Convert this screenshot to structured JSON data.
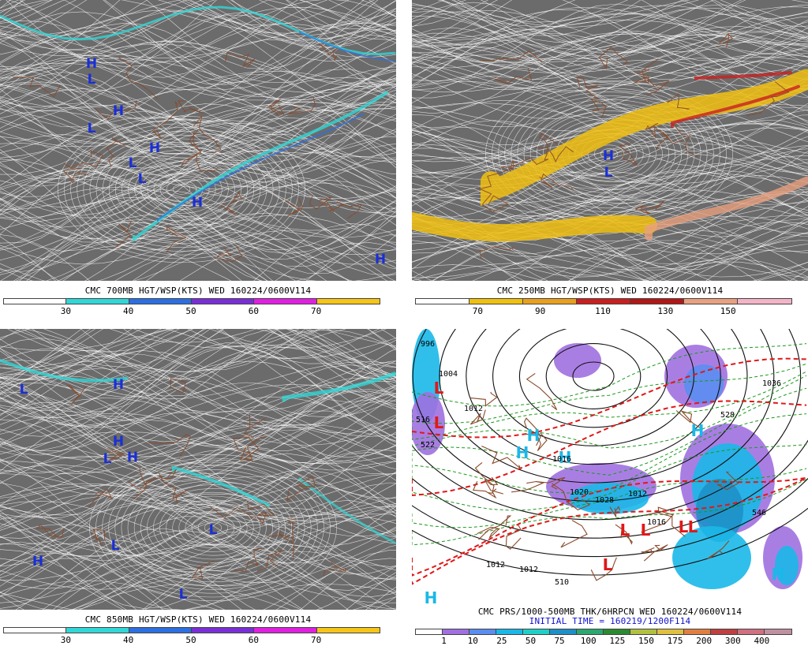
{
  "colors": {
    "map_fill": "#6b6b6b",
    "streamline": "#ffffff",
    "border": "#8a4a2a",
    "hi_lo_blue": "#1a2fd6",
    "hi_lo_red": "#e01818",
    "hi_lo_cyan": "#1ab8e8",
    "thickness_red": "#e01818",
    "thickness_green": "#1a9a1a",
    "isobar": "#111111"
  },
  "panels": [
    {
      "id": "p700",
      "caption": "CMC 700MB HGT/WSP(KTS) WED 160224/0600V114",
      "colorbar": {
        "segments": [
          "#ffffff",
          "#33d6d6",
          "#2d6fe0",
          "#7a2fd6",
          "#e020e0",
          "#f5c518"
        ],
        "ticks": [
          "30",
          "40",
          "50",
          "60",
          "70"
        ]
      },
      "markers": [
        {
          "t": "H",
          "c": "blue"
        },
        {
          "t": "L",
          "c": "blue"
        },
        {
          "t": "H",
          "c": "blue"
        },
        {
          "t": "L",
          "c": "blue"
        },
        {
          "t": "H",
          "c": "blue"
        },
        {
          "t": "L",
          "c": "blue"
        },
        {
          "t": "L",
          "c": "blue"
        },
        {
          "t": "H",
          "c": "blue"
        },
        {
          "t": "H",
          "c": "blue"
        }
      ]
    },
    {
      "id": "p250",
      "caption": "CMC 250MB HGT/WSP(KTS) WED 160224/0600V114",
      "colorbar": {
        "segments": [
          "#ffffff",
          "#f0c010",
          "#e8a020",
          "#c82020",
          "#b01818",
          "#e8a080",
          "#f4b4c8"
        ],
        "ticks": [
          "70",
          "90",
          "110",
          "130",
          "150"
        ]
      },
      "markers": [
        {
          "t": "H",
          "c": "blue"
        },
        {
          "t": "L",
          "c": "blue"
        }
      ]
    },
    {
      "id": "p850",
      "caption": "CMC 850MB HGT/WSP(KTS) WED 160224/0600V114",
      "colorbar": {
        "segments": [
          "#ffffff",
          "#33d6d6",
          "#2d6fe0",
          "#7a2fd6",
          "#e020e0",
          "#f5c518"
        ],
        "ticks": [
          "30",
          "40",
          "50",
          "60",
          "70"
        ]
      },
      "markers": [
        {
          "t": "L",
          "c": "blue"
        },
        {
          "t": "H",
          "c": "blue"
        },
        {
          "t": "H",
          "c": "blue"
        },
        {
          "t": "H",
          "c": "blue"
        },
        {
          "t": "L",
          "c": "blue"
        },
        {
          "t": "L",
          "c": "blue"
        },
        {
          "t": "L",
          "c": "blue"
        },
        {
          "t": "H",
          "c": "blue"
        },
        {
          "t": "L",
          "c": "blue"
        }
      ]
    },
    {
      "id": "pprs",
      "caption": "CMC PRS/1000-500MB THK/6HRPCN WED 160224/0600V114",
      "subcaption": "INITIAL TIME = 160219/1200F114",
      "colorbar": {
        "segments": [
          "#ffffff",
          "#a070e0",
          "#5a8ef0",
          "#1ab8e8",
          "#20d0c8",
          "#1e90c8",
          "#2aa870",
          "#2a8a30",
          "#b0c040",
          "#e0c040",
          "#e08040",
          "#c04040",
          "#d07080",
          "#c090a0"
        ],
        "ticks": [
          "1",
          "10",
          "25",
          "50",
          "75",
          "100",
          "125",
          "150",
          "175",
          "200",
          "300",
          "400"
        ]
      },
      "markers": [
        {
          "t": "L",
          "c": "red"
        },
        {
          "t": "L",
          "c": "red"
        },
        {
          "t": "H",
          "c": "cyan"
        },
        {
          "t": "H",
          "c": "cyan"
        },
        {
          "t": "H",
          "c": "cyan"
        },
        {
          "t": "H",
          "c": "cyan"
        },
        {
          "t": "L",
          "c": "red"
        },
        {
          "t": "L",
          "c": "red"
        },
        {
          "t": "L",
          "c": "red"
        },
        {
          "t": "L",
          "c": "red"
        },
        {
          "t": "L",
          "c": "red"
        },
        {
          "t": "H",
          "c": "cyan"
        },
        {
          "t": "H",
          "c": "cyan"
        }
      ],
      "isobar_labels": [
        "996",
        "1004",
        "1012",
        "1020",
        "1028",
        "1012",
        "1012",
        "1012",
        "1016",
        "1016",
        "1036"
      ],
      "thickness_labels": [
        "510",
        "516",
        "522",
        "528",
        "546"
      ]
    }
  ]
}
